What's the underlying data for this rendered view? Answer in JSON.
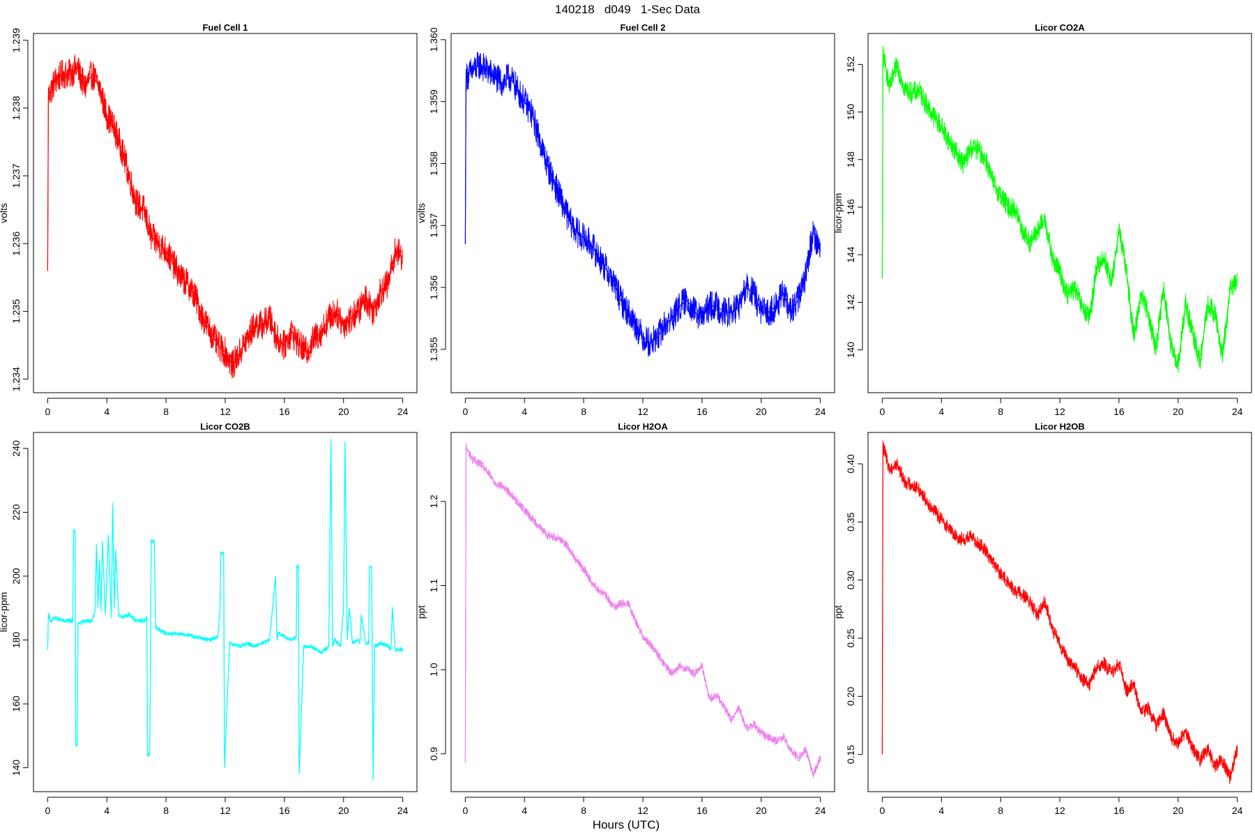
{
  "figure": {
    "title": "140218   d049   1-Sec Data",
    "xlabel": "Hours (UTC)"
  },
  "chart_data": [
    {
      "type": "line",
      "title": "Fuel Cell 1",
      "ylabel": "volts",
      "color": "#ff0000",
      "xlim": [
        0,
        24
      ],
      "ylim": [
        1.2338,
        1.2391
      ],
      "xticks": [
        0,
        4,
        8,
        12,
        16,
        20,
        24
      ],
      "yticks": [
        1.234,
        1.235,
        1.236,
        1.237,
        1.238,
        1.239
      ],
      "ytick_labels": [
        "1.234",
        "1.235",
        "1.236",
        "1.237",
        "1.238",
        "1.239"
      ],
      "noise": 0.00022,
      "x": [
        0,
        0.05,
        0.1,
        0.5,
        1,
        1.5,
        2,
        2.5,
        3,
        3.5,
        4,
        4.5,
        5,
        5.5,
        6,
        6.5,
        7,
        7.5,
        8,
        8.5,
        9,
        9.5,
        10,
        10.5,
        11,
        11.5,
        12,
        12.5,
        13,
        13.5,
        14,
        14.5,
        15,
        15.5,
        16,
        16.5,
        17,
        17.5,
        18,
        18.5,
        19,
        19.5,
        20,
        20.5,
        21,
        21.5,
        22,
        22.5,
        23,
        23.5,
        24
      ],
      "y": [
        1.2356,
        1.2382,
        1.2382,
        1.2384,
        1.2385,
        1.2385,
        1.2386,
        1.2383,
        1.2385,
        1.2383,
        1.2379,
        1.2377,
        1.2374,
        1.237,
        1.2366,
        1.2365,
        1.2361,
        1.236,
        1.2359,
        1.2357,
        1.2355,
        1.2354,
        1.2352,
        1.2349,
        1.2347,
        1.2345,
        1.2344,
        1.2342,
        1.2344,
        1.2346,
        1.2348,
        1.2348,
        1.2349,
        1.2346,
        1.2345,
        1.2347,
        1.2345,
        1.2344,
        1.2346,
        1.2347,
        1.2349,
        1.235,
        1.2348,
        1.2349,
        1.235,
        1.2352,
        1.235,
        1.2353,
        1.2354,
        1.2359,
        1.2358
      ]
    },
    {
      "type": "line",
      "title": "Fuel Cell 2",
      "ylabel": "volts",
      "color": "#0000ff",
      "xlim": [
        0,
        24
      ],
      "ylim": [
        1.3543,
        1.3601
      ],
      "xticks": [
        0,
        4,
        8,
        12,
        16,
        20,
        24
      ],
      "yticks": [
        1.355,
        1.356,
        1.357,
        1.358,
        1.359,
        1.36
      ],
      "ytick_labels": [
        "1.355",
        "1.356",
        "1.357",
        "1.358",
        "1.359",
        "1.360"
      ],
      "noise": 0.00024,
      "x": [
        0,
        0.05,
        0.1,
        0.5,
        1,
        1.5,
        2,
        2.5,
        3,
        3.5,
        4,
        4.5,
        5,
        5.5,
        6,
        6.5,
        7,
        7.5,
        8,
        8.5,
        9,
        9.5,
        10,
        10.5,
        11,
        11.5,
        12,
        12.5,
        13,
        13.5,
        14,
        14.5,
        15,
        15.5,
        16,
        16.5,
        17,
        17.5,
        18,
        18.5,
        19,
        19.5,
        20,
        20.5,
        21,
        21.5,
        22,
        22.5,
        23,
        23.5,
        24
      ],
      "y": [
        1.3567,
        1.3594,
        1.3594,
        1.3595,
        1.3596,
        1.3595,
        1.3594,
        1.3593,
        1.3594,
        1.3592,
        1.359,
        1.3588,
        1.3584,
        1.358,
        1.3577,
        1.3574,
        1.3571,
        1.3569,
        1.3568,
        1.3567,
        1.3565,
        1.3563,
        1.3561,
        1.3558,
        1.3556,
        1.3554,
        1.3552,
        1.3551,
        1.3552,
        1.3554,
        1.3555,
        1.3557,
        1.3558,
        1.3556,
        1.3555,
        1.3557,
        1.3557,
        1.3556,
        1.3556,
        1.3557,
        1.356,
        1.3559,
        1.3556,
        1.3556,
        1.3557,
        1.3559,
        1.3556,
        1.3558,
        1.3562,
        1.3569,
        1.3566
      ]
    },
    {
      "type": "line",
      "title": "Licor CO2A",
      "ylabel": "licor-ppm",
      "color": "#00ff00",
      "xlim": [
        0,
        24
      ],
      "ylim": [
        138.2,
        153.3
      ],
      "xticks": [
        0,
        4,
        8,
        12,
        16,
        20,
        24
      ],
      "yticks": [
        140,
        142,
        144,
        146,
        148,
        150,
        152
      ],
      "ytick_labels": [
        "140",
        "142",
        "144",
        "146",
        "148",
        "150",
        "152"
      ],
      "noise": 0.45,
      "x": [
        0,
        0.05,
        0.1,
        0.5,
        1,
        1.5,
        2,
        2.5,
        3,
        3.5,
        4,
        4.5,
        5,
        5.5,
        6,
        6.5,
        7,
        7.5,
        8,
        8.5,
        9,
        9.5,
        10,
        10.5,
        11,
        11.5,
        12,
        12.5,
        13,
        13.5,
        14,
        14.5,
        15,
        15.5,
        16,
        16.5,
        17,
        17.5,
        18,
        18.5,
        19,
        19.5,
        20,
        20.5,
        21,
        21.5,
        22,
        22.5,
        23,
        23.5,
        24
      ],
      "y": [
        143.0,
        152.5,
        152.3,
        151.0,
        152.0,
        151.0,
        150.8,
        150.9,
        150.3,
        149.8,
        149.4,
        148.8,
        148.3,
        147.8,
        148.5,
        148.4,
        148.0,
        147.0,
        146.5,
        146.0,
        145.9,
        145.0,
        144.5,
        145.0,
        145.5,
        143.8,
        143.3,
        142.3,
        142.6,
        141.8,
        141.3,
        143.5,
        143.9,
        142.8,
        145.0,
        143.4,
        140.5,
        142.4,
        141.5,
        140.0,
        142.6,
        140.2,
        139.3,
        142.0,
        140.6,
        139.5,
        141.9,
        141.5,
        139.7,
        142.5,
        143.0
      ]
    },
    {
      "type": "line",
      "title": "Licor CO2B",
      "ylabel": "licor-ppm",
      "color": "#00ffff",
      "xlim": [
        0,
        24
      ],
      "ylim": [
        132.5,
        245.0
      ],
      "xticks": [
        0,
        4,
        8,
        12,
        16,
        20,
        24
      ],
      "yticks": [
        140,
        160,
        180,
        200,
        220,
        240
      ],
      "ytick_labels": [
        "140",
        "160",
        "180",
        "200",
        "220",
        "240"
      ],
      "noise": 0.7,
      "x": [
        0,
        0.05,
        0.2,
        0.5,
        1,
        1.4,
        1.7,
        1.75,
        1.85,
        1.9,
        2.0,
        2.05,
        2.5,
        3,
        3.2,
        3.3,
        3.4,
        3.5,
        3.6,
        3.7,
        3.9,
        4.1,
        4.3,
        4.4,
        4.5,
        4.6,
        4.8,
        5,
        5.5,
        6,
        6.5,
        6.7,
        6.75,
        6.9,
        7.0,
        7.2,
        7.3,
        7.6,
        8,
        9,
        10,
        11,
        11.5,
        11.65,
        11.7,
        11.9,
        11.95,
        12.3,
        13,
        13.5,
        14,
        14.5,
        15,
        15.4,
        15.5,
        15.6,
        16,
        16.5,
        16.8,
        16.85,
        16.95,
        17.0,
        17.3,
        17.8,
        18.5,
        19.0,
        19.15,
        19.25,
        19.4,
        19.8,
        20.0,
        20.1,
        20.25,
        20.4,
        20.6,
        21.0,
        21.1,
        21.2,
        21.5,
        21.7,
        21.75,
        21.9,
        22.0,
        22.1,
        22.5,
        23,
        23.2,
        23.3,
        23.5,
        24
      ],
      "y": [
        177,
        188,
        186,
        187,
        186,
        186,
        186,
        214,
        214,
        147,
        147,
        185,
        186,
        186,
        189,
        210,
        190,
        205,
        189,
        211,
        188,
        213,
        187,
        223,
        190,
        208,
        188,
        187,
        188,
        186,
        186,
        187,
        144,
        144,
        211,
        211,
        184,
        183,
        182,
        182,
        181,
        180,
        181,
        190,
        207,
        207,
        140,
        179,
        178,
        179,
        178,
        179,
        180,
        200,
        180,
        182,
        181,
        180,
        181,
        203,
        203,
        138,
        178,
        178,
        176,
        178,
        243,
        178,
        180,
        178,
        190,
        242,
        180,
        190,
        179,
        180,
        179,
        188,
        179,
        179,
        203,
        203,
        136,
        178,
        179,
        178,
        177,
        190,
        177,
        177
      ]
    },
    {
      "type": "line",
      "title": "Licor H2OA",
      "ylabel": "ppt",
      "color": "#ee82ee",
      "xlim": [
        0,
        24
      ],
      "ylim": [
        0.855,
        1.282
      ],
      "xticks": [
        0,
        4,
        8,
        12,
        16,
        20,
        24
      ],
      "yticks": [
        0.9,
        1.0,
        1.1,
        1.2
      ],
      "ytick_labels": [
        "0.9",
        "1.0",
        "1.1",
        "1.2"
      ],
      "noise": 0.005,
      "x": [
        0,
        0.05,
        0.1,
        0.5,
        1,
        1.5,
        2,
        2.5,
        3,
        3.5,
        4,
        4.5,
        5,
        5.5,
        6,
        6.5,
        7,
        7.5,
        8,
        8.5,
        9,
        9.5,
        10,
        10.5,
        11,
        11.5,
        12,
        12.5,
        13,
        13.5,
        14,
        14.5,
        15,
        15.5,
        16,
        16.5,
        17,
        17.5,
        18,
        18.5,
        19,
        19.5,
        20,
        20.5,
        21,
        21.5,
        22,
        22.5,
        23,
        23.5,
        24
      ],
      "y": [
        0.89,
        1.265,
        1.262,
        1.25,
        1.245,
        1.235,
        1.222,
        1.218,
        1.21,
        1.2,
        1.19,
        1.18,
        1.17,
        1.16,
        1.158,
        1.155,
        1.145,
        1.13,
        1.12,
        1.105,
        1.095,
        1.088,
        1.075,
        1.078,
        1.08,
        1.058,
        1.04,
        1.03,
        1.018,
        1.005,
        0.995,
        1.005,
        1.0,
        0.995,
        1.005,
        0.965,
        0.97,
        0.955,
        0.94,
        0.955,
        0.93,
        0.935,
        0.925,
        0.92,
        0.915,
        0.92,
        0.905,
        0.895,
        0.905,
        0.875,
        0.895
      ]
    },
    {
      "type": "line",
      "title": "Licor H2OB",
      "ylabel": "ppt",
      "color": "#ff0000",
      "xlim": [
        0,
        24
      ],
      "ylim": [
        0.118,
        0.427
      ],
      "xticks": [
        0,
        4,
        8,
        12,
        16,
        20,
        24
      ],
      "yticks": [
        0.15,
        0.2,
        0.25,
        0.3,
        0.35,
        0.4
      ],
      "ytick_labels": [
        "0.15",
        "0.20",
        "0.25",
        "0.30",
        "0.35",
        "0.40"
      ],
      "noise": 0.006,
      "x": [
        0,
        0.05,
        0.1,
        0.5,
        1,
        1.5,
        2,
        2.5,
        3,
        3.5,
        4,
        4.5,
        5,
        5.5,
        6,
        6.5,
        7,
        7.5,
        8,
        8.5,
        9,
        9.5,
        10,
        10.5,
        11,
        11.5,
        12,
        12.5,
        13,
        13.5,
        14,
        14.5,
        15,
        15.5,
        16,
        16.5,
        17,
        17.5,
        18,
        18.5,
        19,
        19.5,
        20,
        20.5,
        21,
        21.5,
        22,
        22.5,
        23,
        23.5,
        24
      ],
      "y": [
        0.15,
        0.415,
        0.413,
        0.395,
        0.4,
        0.385,
        0.382,
        0.378,
        0.368,
        0.36,
        0.352,
        0.345,
        0.337,
        0.335,
        0.337,
        0.332,
        0.325,
        0.315,
        0.305,
        0.298,
        0.29,
        0.288,
        0.28,
        0.27,
        0.282,
        0.258,
        0.245,
        0.232,
        0.225,
        0.215,
        0.21,
        0.225,
        0.228,
        0.22,
        0.228,
        0.205,
        0.21,
        0.185,
        0.19,
        0.175,
        0.185,
        0.165,
        0.16,
        0.17,
        0.155,
        0.145,
        0.155,
        0.14,
        0.145,
        0.13,
        0.155
      ]
    }
  ]
}
